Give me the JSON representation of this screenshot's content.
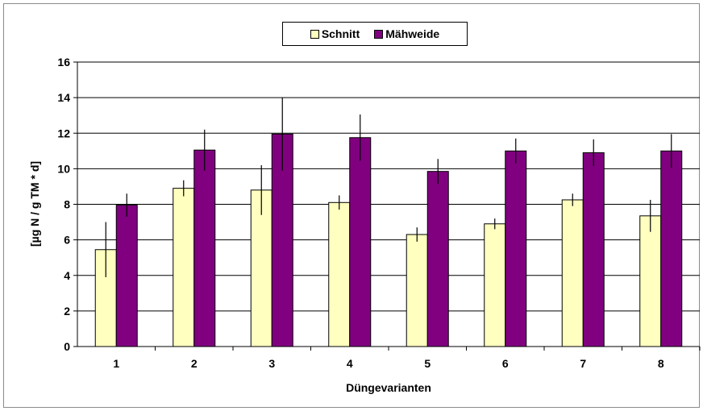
{
  "chart_data": {
    "type": "bar",
    "xlabel": "Düngevarianten",
    "ylabel": "[µg N / g TM * d]",
    "ylim": [
      0,
      16
    ],
    "yticks": [
      "0",
      "2",
      "4",
      "6",
      "8",
      "10",
      "12",
      "14",
      "16"
    ],
    "categories": [
      "1",
      "2",
      "3",
      "4",
      "5",
      "6",
      "7",
      "8"
    ],
    "grid": true,
    "legend_position": "top-center",
    "series": [
      {
        "name": "Schnitt",
        "color": "#ffffc0",
        "values": [
          5.45,
          8.9,
          8.8,
          8.1,
          6.3,
          6.9,
          8.25,
          7.35
        ],
        "errors": [
          1.55,
          0.45,
          1.4,
          0.4,
          0.4,
          0.3,
          0.35,
          0.9
        ]
      },
      {
        "name": "Mähweide",
        "color": "#800080",
        "values": [
          7.95,
          11.05,
          11.95,
          11.75,
          9.85,
          11.0,
          10.9,
          11.0
        ],
        "errors": [
          0.65,
          1.15,
          2.05,
          1.3,
          0.7,
          0.7,
          0.75,
          0.95
        ]
      }
    ]
  }
}
